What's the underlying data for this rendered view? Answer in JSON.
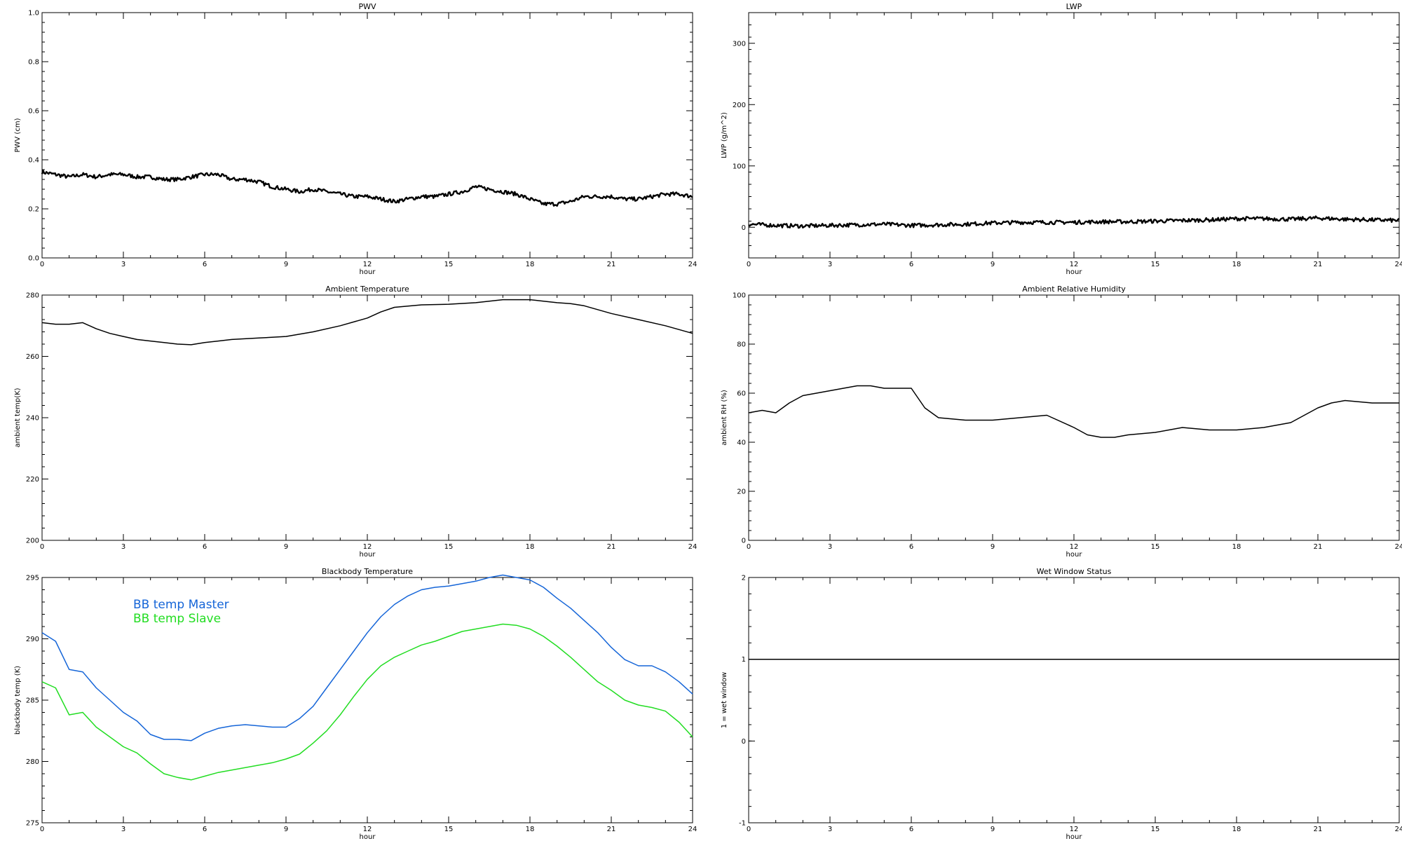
{
  "chart_data": [
    {
      "type": "line",
      "title": "PWV",
      "xlabel": "hour",
      "ylabel": "PWV (cm)",
      "xlim": [
        0,
        24
      ],
      "ylim": [
        0.0,
        1.0
      ],
      "xticks": [
        "0",
        "3",
        "6",
        "9",
        "12",
        "15",
        "18",
        "21",
        "24"
      ],
      "yticks": [
        "0.0",
        "0.2",
        "0.4",
        "0.6",
        "0.8",
        "1.0"
      ],
      "grid": false,
      "noisy": true,
      "series": [
        {
          "color": "#000000",
          "x": [
            0,
            0.5,
            1,
            1.5,
            2,
            2.5,
            3,
            3.5,
            4,
            4.5,
            5,
            5.5,
            6,
            6.5,
            7,
            7.5,
            8,
            8.5,
            9,
            9.5,
            10,
            10.5,
            11,
            11.5,
            12,
            12.5,
            13,
            13.5,
            14,
            14.5,
            15,
            15.5,
            16,
            16.5,
            17,
            17.5,
            18,
            18.5,
            19,
            19.5,
            20,
            20.5,
            21,
            21.5,
            22,
            22.5,
            23,
            23.5,
            24
          ],
          "y": [
            0.35,
            0.34,
            0.33,
            0.34,
            0.33,
            0.34,
            0.34,
            0.33,
            0.33,
            0.32,
            0.32,
            0.33,
            0.34,
            0.34,
            0.32,
            0.32,
            0.31,
            0.29,
            0.28,
            0.27,
            0.28,
            0.27,
            0.26,
            0.25,
            0.25,
            0.24,
            0.23,
            0.24,
            0.25,
            0.25,
            0.26,
            0.27,
            0.29,
            0.28,
            0.27,
            0.26,
            0.24,
            0.22,
            0.22,
            0.23,
            0.25,
            0.25,
            0.25,
            0.24,
            0.24,
            0.25,
            0.26,
            0.26,
            0.25
          ]
        }
      ]
    },
    {
      "type": "line",
      "title": "LWP",
      "xlabel": "hour",
      "ylabel": "LWP (g/m^2)",
      "xlim": [
        0,
        24
      ],
      "ylim": [
        -50,
        350
      ],
      "xticks": [
        "0",
        "3",
        "6",
        "9",
        "12",
        "15",
        "18",
        "21",
        "24"
      ],
      "yticks": [
        "0",
        "100",
        "200",
        "300"
      ],
      "grid": false,
      "noisy": true,
      "series": [
        {
          "color": "#000000",
          "x": [
            0,
            1,
            2,
            3,
            4,
            5,
            6,
            7,
            8,
            9,
            10,
            11,
            12,
            13,
            14,
            15,
            16,
            17,
            18,
            19,
            20,
            21,
            22,
            23,
            24
          ],
          "y": [
            5,
            3,
            2,
            3,
            4,
            5,
            3,
            4,
            5,
            7,
            8,
            8,
            8,
            9,
            9,
            10,
            11,
            12,
            14,
            14,
            13,
            15,
            13,
            12,
            11
          ]
        }
      ]
    },
    {
      "type": "line",
      "title": "Ambient Temperature",
      "xlabel": "hour",
      "ylabel": "ambient temp(K)",
      "xlim": [
        0,
        24
      ],
      "ylim": [
        200,
        280
      ],
      "xticks": [
        "0",
        "3",
        "6",
        "9",
        "12",
        "15",
        "18",
        "21",
        "24"
      ],
      "yticks": [
        "200",
        "220",
        "240",
        "260",
        "280"
      ],
      "grid": false,
      "noisy": false,
      "series": [
        {
          "color": "#000000",
          "x": [
            0,
            0.5,
            1,
            1.5,
            2,
            2.5,
            3,
            3.5,
            4,
            4.5,
            5,
            5.5,
            6,
            6.5,
            7,
            8,
            9,
            10,
            11,
            12,
            12.5,
            13,
            14,
            15,
            16,
            17,
            17.5,
            18,
            18.5,
            19,
            19.5,
            20,
            21,
            22,
            23,
            24
          ],
          "y": [
            271,
            270.5,
            270.5,
            271,
            269,
            267.5,
            266.5,
            265.5,
            265,
            264.5,
            264,
            263.8,
            264.5,
            265,
            265.5,
            266,
            266.5,
            268,
            270,
            272.5,
            274.5,
            276,
            276.8,
            277,
            277.5,
            278.5,
            278.5,
            278.5,
            278,
            277.5,
            277.2,
            276.5,
            274,
            272,
            270,
            267.5
          ]
        }
      ]
    },
    {
      "type": "line",
      "title": "Ambient Relative Humidity",
      "xlabel": "hour",
      "ylabel": "ambient RH (%)",
      "xlim": [
        0,
        24
      ],
      "ylim": [
        0,
        100
      ],
      "xticks": [
        "0",
        "3",
        "6",
        "9",
        "12",
        "15",
        "18",
        "21",
        "24"
      ],
      "yticks": [
        "0",
        "20",
        "40",
        "60",
        "80",
        "100"
      ],
      "grid": false,
      "noisy": false,
      "series": [
        {
          "color": "#000000",
          "x": [
            0,
            0.5,
            1,
            1.5,
            2,
            2.5,
            3,
            3.5,
            4,
            4.5,
            5,
            5.5,
            6,
            6.5,
            7,
            8,
            9,
            10,
            11,
            12,
            12.5,
            13,
            13.5,
            14,
            15,
            16,
            17,
            18,
            19,
            20,
            21,
            21.5,
            22,
            23,
            24
          ],
          "y": [
            52,
            53,
            52,
            56,
            59,
            60,
            61,
            62,
            63,
            63,
            62,
            62,
            62,
            54,
            50,
            49,
            49,
            50,
            51,
            46,
            43,
            42,
            42,
            43,
            44,
            46,
            45,
            45,
            46,
            48,
            54,
            56,
            57,
            56,
            56
          ]
        }
      ]
    },
    {
      "type": "line",
      "title": "Blackbody Temperature",
      "xlabel": "hour",
      "ylabel": "blackbody temp (K)",
      "xlim": [
        0,
        24
      ],
      "ylim": [
        275,
        295
      ],
      "xticks": [
        "0",
        "3",
        "6",
        "9",
        "12",
        "15",
        "18",
        "21",
        "24"
      ],
      "yticks": [
        "275",
        "280",
        "285",
        "290",
        "295"
      ],
      "grid": false,
      "noisy": false,
      "legend": "top-left",
      "series": [
        {
          "name": "BB temp Master",
          "color": "#1565d8",
          "x": [
            0,
            0.5,
            1,
            1.5,
            2,
            2.5,
            3,
            3.5,
            4,
            4.5,
            5,
            5.5,
            6,
            6.5,
            7,
            7.5,
            8,
            8.5,
            9,
            9.5,
            10,
            10.5,
            11,
            11.5,
            12,
            12.5,
            13,
            13.5,
            14,
            14.5,
            15,
            15.5,
            16,
            16.5,
            17,
            17.5,
            18,
            18.5,
            19,
            19.5,
            20,
            20.5,
            21,
            21.5,
            22,
            22.5,
            23,
            23.5,
            24
          ],
          "y": [
            290.5,
            289.8,
            287.5,
            287.3,
            286,
            285,
            284,
            283.3,
            282.2,
            281.8,
            281.8,
            281.7,
            282.3,
            282.7,
            282.9,
            283,
            282.9,
            282.8,
            282.8,
            283.5,
            284.5,
            286,
            287.5,
            289,
            290.5,
            291.8,
            292.8,
            293.5,
            294,
            294.2,
            294.3,
            294.5,
            294.7,
            295,
            295.2,
            295,
            294.8,
            294.2,
            293.3,
            292.5,
            291.5,
            290.5,
            289.3,
            288.3,
            287.8,
            287.8,
            287.3,
            286.5,
            285.5
          ]
        },
        {
          "name": "BB temp Slave",
          "color": "#22dd22",
          "x": [
            0,
            0.5,
            1,
            1.5,
            2,
            2.5,
            3,
            3.5,
            4,
            4.5,
            5,
            5.5,
            6,
            6.5,
            7,
            7.5,
            8,
            8.5,
            9,
            9.5,
            10,
            10.5,
            11,
            11.5,
            12,
            12.5,
            13,
            13.5,
            14,
            14.5,
            15,
            15.5,
            16,
            16.5,
            17,
            17.5,
            18,
            18.5,
            19,
            19.5,
            20,
            20.5,
            21,
            21.5,
            22,
            22.5,
            23,
            23.5,
            24
          ],
          "y": [
            286.5,
            286,
            283.8,
            284,
            282.8,
            282,
            281.2,
            280.7,
            279.8,
            279,
            278.7,
            278.5,
            278.8,
            279.1,
            279.3,
            279.5,
            279.7,
            279.9,
            280.2,
            280.6,
            281.5,
            282.5,
            283.8,
            285.3,
            286.7,
            287.8,
            288.5,
            289,
            289.5,
            289.8,
            290.2,
            290.6,
            290.8,
            291,
            291.2,
            291.1,
            290.8,
            290.2,
            289.4,
            288.5,
            287.5,
            286.5,
            285.8,
            285,
            284.6,
            284.4,
            284.1,
            283.2,
            282
          ]
        }
      ]
    },
    {
      "type": "line",
      "title": "Wet Window Status",
      "xlabel": "hour",
      "ylabel": "1 = wet window",
      "xlim": [
        0,
        24
      ],
      "ylim": [
        -1,
        2
      ],
      "xticks": [
        "0",
        "3",
        "6",
        "9",
        "12",
        "15",
        "18",
        "21",
        "24"
      ],
      "yticks": [
        "-1",
        "0",
        "1",
        "2"
      ],
      "grid": false,
      "noisy": false,
      "series": [
        {
          "color": "#000000",
          "x": [
            0,
            24
          ],
          "y": [
            1,
            1
          ]
        }
      ]
    }
  ]
}
